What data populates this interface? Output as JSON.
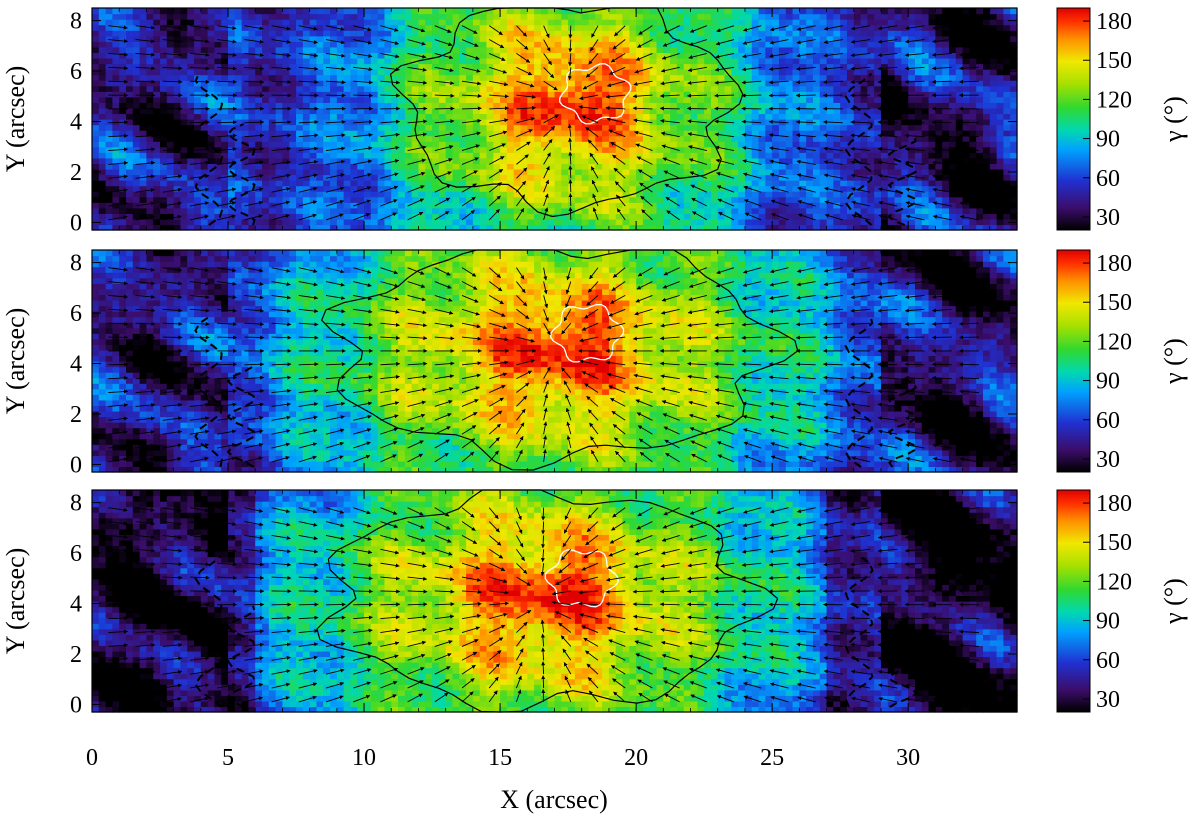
{
  "chart_data": {
    "type": "heatmap",
    "xlabel": "X (arcsec)",
    "x_range": [
      0,
      34
    ],
    "x_ticks": [
      "0",
      "5",
      "10",
      "15",
      "20",
      "25",
      "30"
    ],
    "x_tick_values": [
      0,
      5,
      10,
      15,
      20,
      25,
      30
    ],
    "panels": [
      {
        "ylabel": "Y (arcsec)",
        "y_range": [
          -0.3,
          8.5
        ],
        "y_ticks": [
          "0",
          "2",
          "4",
          "6",
          "8"
        ],
        "y_tick_values": [
          0,
          2,
          4,
          6,
          8
        ],
        "sunspot_center": [
          17.5,
          4.7
        ],
        "umbra_center": [
          18.5,
          5.1
        ],
        "umbra_radius": 1.1,
        "penumbra_extent": {
          "xmin": 10.5,
          "xmax": 22.5,
          "ymin": 0.2,
          "ymax": 8.3
        }
      },
      {
        "ylabel": "Y (arcsec)",
        "y_range": [
          -0.3,
          8.5
        ],
        "y_ticks": [
          "0",
          "2",
          "4",
          "6",
          "8"
        ],
        "y_tick_values": [
          0,
          2,
          4,
          6,
          8
        ],
        "sunspot_center": [
          17.0,
          4.5
        ],
        "umbra_center": [
          18.2,
          5.2
        ],
        "umbra_radius": 1.1,
        "penumbra_extent": {
          "xmin": 7.0,
          "xmax": 23.0,
          "ymin": 0.0,
          "ymax": 8.5
        }
      },
      {
        "ylabel": "Y (arcsec)",
        "y_range": [
          -0.3,
          8.5
        ],
        "y_ticks": [
          "0",
          "2",
          "4",
          "6",
          "8"
        ],
        "y_tick_values": [
          0,
          2,
          4,
          6,
          8
        ],
        "sunspot_center": [
          16.5,
          4.2
        ],
        "umbra_center": [
          18.0,
          5.0
        ],
        "umbra_radius": 1.1,
        "penumbra_extent": {
          "xmin": 7.0,
          "xmax": 22.5,
          "ymin": 0.0,
          "ymax": 8.5
        }
      }
    ],
    "colorbar": {
      "label": "γ (°)",
      "range": [
        20,
        190
      ],
      "ticks": [
        "30",
        "60",
        "90",
        "120",
        "150",
        "180"
      ],
      "tick_values": [
        30,
        60,
        90,
        120,
        150,
        180
      ],
      "colormap": [
        "#000000",
        "#3b0d6b",
        "#2030d0",
        "#00a0ff",
        "#00d8b0",
        "#30d830",
        "#a8e000",
        "#f0e800",
        "#ff9000",
        "#ff3000",
        "#e00000"
      ]
    },
    "overlays": {
      "vector_field": "horizontal magnetic field arrows pointing radially inward toward sunspot center",
      "solid_contour": "penumbra outer boundary (black)",
      "white_contour": "umbra boundary",
      "dashed_contour": "black dashed contours in outer regions"
    }
  }
}
